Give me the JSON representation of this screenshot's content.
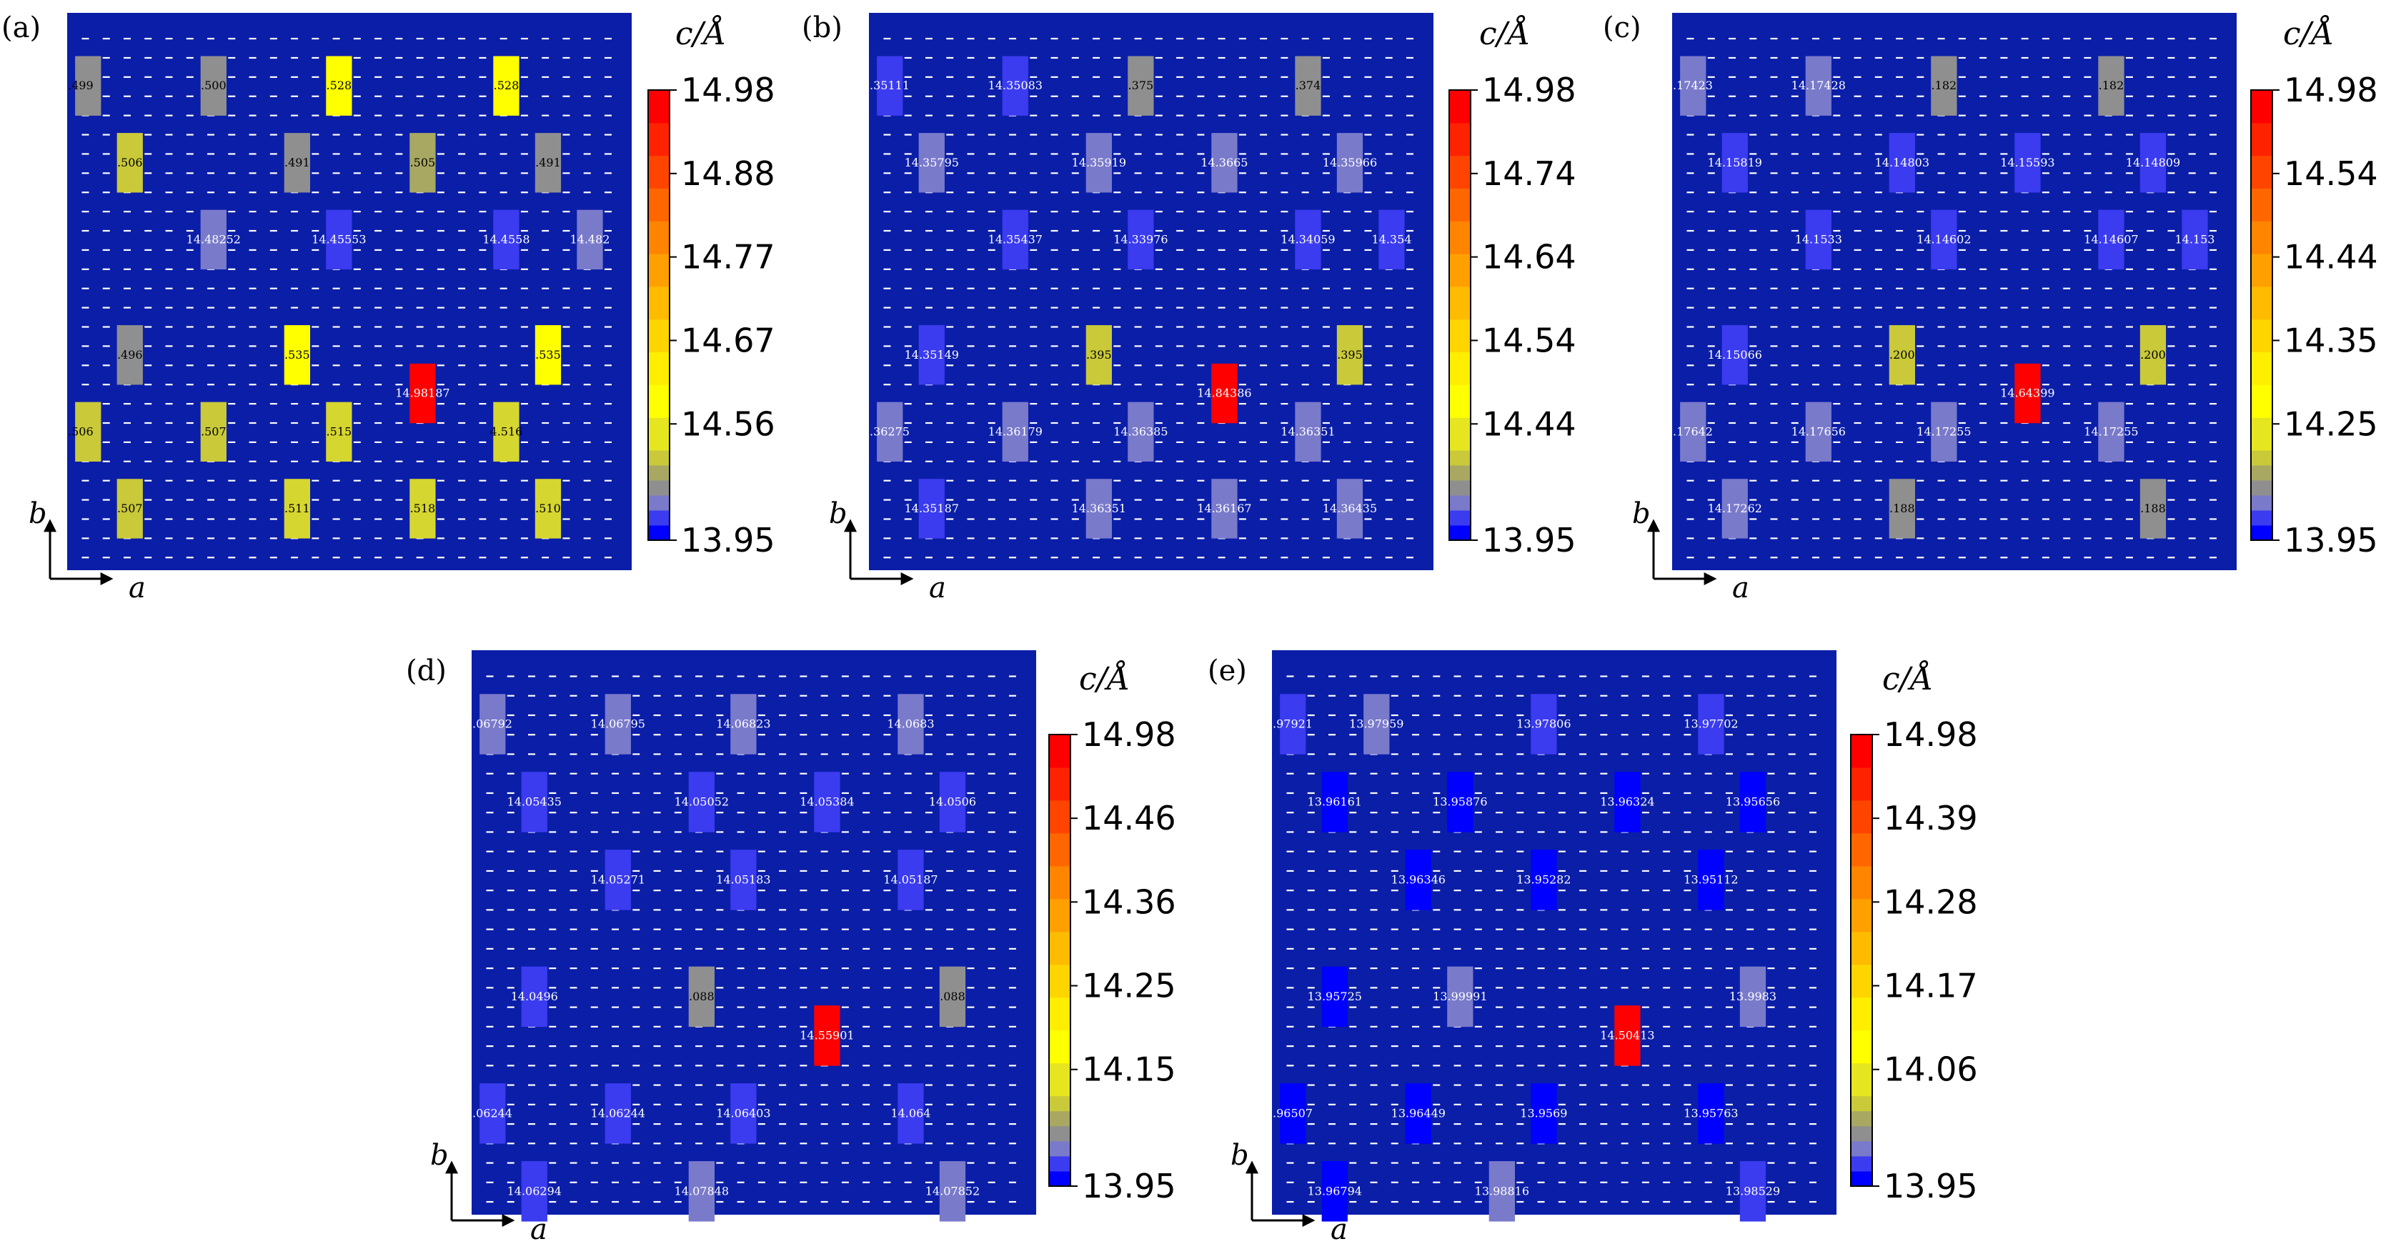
{
  "figure": {
    "colors": {
      "background": "#0b1ea8",
      "dash": "#ffffff"
    },
    "colorbar": {
      "title_var": "c",
      "title_unit": "/Å",
      "steps": [
        "#0000ff",
        "#3b3bf0",
        "#7a7acb",
        "#8f8f8f",
        "#a8a862",
        "#c9c93a",
        "#e6e620",
        "#ffff00",
        "#ffee00",
        "#ffd500",
        "#ffbb00",
        "#ffa000",
        "#ff8400",
        "#ff6600",
        "#ff4400",
        "#ff2200",
        "#ff0000"
      ]
    }
  },
  "chart_data": [
    {
      "type": "heatmap",
      "panel_label": "(a)",
      "title": "c/Å",
      "xlabel": "a",
      "ylabel": "b",
      "grid": {
        "cols": 13,
        "rows": 13
      },
      "colorbar_ticks": [
        "14.98",
        "14.88",
        "14.77",
        "14.67",
        "14.56",
        "13.95"
      ],
      "range": [
        13.95,
        14.98
      ],
      "cells": [
        {
          "col": 0,
          "row": 1,
          "label": ".499",
          "value": 14.499,
          "color": "#8f8f8f"
        },
        {
          "col": 3,
          "row": 1,
          "label": ".500",
          "value": 14.5,
          "color": "#8f8f8f"
        },
        {
          "col": 6,
          "row": 1,
          "label": ".528",
          "value": 14.528,
          "color": "#ffff00"
        },
        {
          "col": 10,
          "row": 1,
          "label": ".528",
          "value": 14.528,
          "color": "#ffff00"
        },
        {
          "col": 1,
          "row": 3,
          "label": ".506",
          "value": 14.506,
          "color": "#c9c93a"
        },
        {
          "col": 5,
          "row": 3,
          "label": ".491",
          "value": 14.491,
          "color": "#8f8f8f"
        },
        {
          "col": 8,
          "row": 3,
          "label": ".505",
          "value": 14.505,
          "color": "#a8a862"
        },
        {
          "col": 11,
          "row": 3,
          "label": ".491",
          "value": 14.491,
          "color": "#8f8f8f"
        },
        {
          "col": 3,
          "row": 5,
          "label": "14.48252",
          "value": 14.48252,
          "color": "#7a7acb"
        },
        {
          "col": 6,
          "row": 5,
          "label": "14.45553",
          "value": 14.45553,
          "color": "#3b3bf0"
        },
        {
          "col": 10,
          "row": 5,
          "label": "14.4558",
          "value": 14.4558,
          "color": "#3b3bf0"
        },
        {
          "col": 12,
          "row": 5,
          "label": "14.482",
          "value": 14.482,
          "color": "#7a7acb"
        },
        {
          "col": 1,
          "row": 8,
          "label": ".496",
          "value": 14.496,
          "color": "#8f8f8f"
        },
        {
          "col": 5,
          "row": 8,
          "label": ".535",
          "value": 14.535,
          "color": "#ffff00"
        },
        {
          "col": 11,
          "row": 8,
          "label": ".535",
          "value": 14.535,
          "color": "#ffff00"
        },
        {
          "col": 8,
          "row": 9,
          "label": "14.98187",
          "value": 14.98187,
          "color": "#ff0000"
        },
        {
          "col": 0,
          "row": 10,
          "label": ".506",
          "value": 14.506,
          "color": "#c9c93a"
        },
        {
          "col": 3,
          "row": 10,
          "label": ".507",
          "value": 14.507,
          "color": "#c9c93a"
        },
        {
          "col": 6,
          "row": 10,
          "label": ".515",
          "value": 14.515,
          "color": "#d6d630"
        },
        {
          "col": 10,
          "row": 10,
          "label": "4.516",
          "value": 14.516,
          "color": "#d6d630"
        },
        {
          "col": 1,
          "row": 12,
          "label": ".507",
          "value": 14.507,
          "color": "#c9c93a"
        },
        {
          "col": 5,
          "row": 12,
          "label": ".511",
          "value": 14.511,
          "color": "#d6d630"
        },
        {
          "col": 8,
          "row": 12,
          "label": ".518",
          "value": 14.518,
          "color": "#d6d630"
        },
        {
          "col": 11,
          "row": 12,
          "label": ".510",
          "value": 14.51,
          "color": "#d6d630"
        }
      ]
    },
    {
      "type": "heatmap",
      "panel_label": "(b)",
      "title": "c/Å",
      "xlabel": "a",
      "ylabel": "b",
      "grid": {
        "cols": 13,
        "rows": 13
      },
      "colorbar_ticks": [
        "14.98",
        "14.74",
        "14.64",
        "14.54",
        "14.44",
        "13.95"
      ],
      "range": [
        13.95,
        14.98
      ],
      "cells": [
        {
          "col": 0,
          "row": 1,
          "label": ".35111",
          "value": 14.35111,
          "color": "#3b3bf0"
        },
        {
          "col": 3,
          "row": 1,
          "label": "14.35083",
          "value": 14.35083,
          "color": "#3b3bf0"
        },
        {
          "col": 6,
          "row": 1,
          "label": ".375",
          "value": 14.375,
          "color": "#8f8f8f"
        },
        {
          "col": 10,
          "row": 1,
          "label": ".374",
          "value": 14.374,
          "color": "#8f8f8f"
        },
        {
          "col": 1,
          "row": 3,
          "label": "14.35795",
          "value": 14.35795,
          "color": "#7a7acb"
        },
        {
          "col": 5,
          "row": 3,
          "label": "14.35919",
          "value": 14.35919,
          "color": "#7a7acb"
        },
        {
          "col": 8,
          "row": 3,
          "label": "14.3665",
          "value": 14.3665,
          "color": "#7a7acb"
        },
        {
          "col": 11,
          "row": 3,
          "label": "14.35966",
          "value": 14.35966,
          "color": "#7a7acb"
        },
        {
          "col": 3,
          "row": 5,
          "label": "14.35437",
          "value": 14.35437,
          "color": "#3b3bf0"
        },
        {
          "col": 6,
          "row": 5,
          "label": "14.33976",
          "value": 14.33976,
          "color": "#3b3bf0"
        },
        {
          "col": 10,
          "row": 5,
          "label": "14.34059",
          "value": 14.34059,
          "color": "#3b3bf0"
        },
        {
          "col": 12,
          "row": 5,
          "label": "14.354",
          "value": 14.354,
          "color": "#3b3bf0"
        },
        {
          "col": 1,
          "row": 8,
          "label": "14.35149",
          "value": 14.35149,
          "color": "#3b3bf0"
        },
        {
          "col": 5,
          "row": 8,
          "label": ".395",
          "value": 14.395,
          "color": "#c9c93a"
        },
        {
          "col": 11,
          "row": 8,
          "label": ".395",
          "value": 14.395,
          "color": "#c9c93a"
        },
        {
          "col": 8,
          "row": 9,
          "label": "14.84386",
          "value": 14.84386,
          "color": "#ff0000"
        },
        {
          "col": 0,
          "row": 10,
          "label": ".36275",
          "value": 14.36275,
          "color": "#7a7acb"
        },
        {
          "col": 3,
          "row": 10,
          "label": "14.36179",
          "value": 14.36179,
          "color": "#7a7acb"
        },
        {
          "col": 6,
          "row": 10,
          "label": "14.36385",
          "value": 14.36385,
          "color": "#7a7acb"
        },
        {
          "col": 10,
          "row": 10,
          "label": "14.36351",
          "value": 14.36351,
          "color": "#7a7acb"
        },
        {
          "col": 1,
          "row": 12,
          "label": "14.35187",
          "value": 14.35187,
          "color": "#3b3bf0"
        },
        {
          "col": 5,
          "row": 12,
          "label": "14.36351",
          "value": 14.36351,
          "color": "#7a7acb"
        },
        {
          "col": 8,
          "row": 12,
          "label": "14.36167",
          "value": 14.36167,
          "color": "#7a7acb"
        },
        {
          "col": 11,
          "row": 12,
          "label": "14.36435",
          "value": 14.36435,
          "color": "#7a7acb"
        }
      ]
    },
    {
      "type": "heatmap",
      "panel_label": "(c)",
      "title": "c/Å",
      "xlabel": "a",
      "ylabel": "b",
      "grid": {
        "cols": 13,
        "rows": 13
      },
      "colorbar_ticks": [
        "14.98",
        "14.54",
        "14.44",
        "14.35",
        "14.25",
        "13.95"
      ],
      "range": [
        13.95,
        14.98
      ],
      "cells": [
        {
          "col": 0,
          "row": 1,
          "label": ".17423",
          "value": 14.17423,
          "color": "#7a7acb"
        },
        {
          "col": 3,
          "row": 1,
          "label": "14.17428",
          "value": 14.17428,
          "color": "#7a7acb"
        },
        {
          "col": 6,
          "row": 1,
          "label": ".182",
          "value": 14.182,
          "color": "#8f8f8f"
        },
        {
          "col": 10,
          "row": 1,
          "label": ".182",
          "value": 14.182,
          "color": "#8f8f8f"
        },
        {
          "col": 1,
          "row": 3,
          "label": "14.15819",
          "value": 14.15819,
          "color": "#3b3bf0"
        },
        {
          "col": 5,
          "row": 3,
          "label": "14.14803",
          "value": 14.14803,
          "color": "#3b3bf0"
        },
        {
          "col": 8,
          "row": 3,
          "label": "14.15593",
          "value": 14.15593,
          "color": "#3b3bf0"
        },
        {
          "col": 11,
          "row": 3,
          "label": "14.14809",
          "value": 14.14809,
          "color": "#3b3bf0"
        },
        {
          "col": 3,
          "row": 5,
          "label": "14.1533",
          "value": 14.1533,
          "color": "#3b3bf0"
        },
        {
          "col": 6,
          "row": 5,
          "label": "14.14602",
          "value": 14.14602,
          "color": "#3b3bf0"
        },
        {
          "col": 10,
          "row": 5,
          "label": "14.14607",
          "value": 14.14607,
          "color": "#3b3bf0"
        },
        {
          "col": 12,
          "row": 5,
          "label": "14.153",
          "value": 14.153,
          "color": "#3b3bf0"
        },
        {
          "col": 1,
          "row": 8,
          "label": "14.15066",
          "value": 14.15066,
          "color": "#3b3bf0"
        },
        {
          "col": 5,
          "row": 8,
          "label": ".200",
          "value": 14.2,
          "color": "#c9c93a"
        },
        {
          "col": 11,
          "row": 8,
          "label": ".200",
          "value": 14.2,
          "color": "#c9c93a"
        },
        {
          "col": 8,
          "row": 9,
          "label": "14.64399",
          "value": 14.64399,
          "color": "#ff0000"
        },
        {
          "col": 0,
          "row": 10,
          "label": ".17642",
          "value": 14.17642,
          "color": "#7a7acb"
        },
        {
          "col": 3,
          "row": 10,
          "label": "14.17656",
          "value": 14.17656,
          "color": "#7a7acb"
        },
        {
          "col": 6,
          "row": 10,
          "label": "14.17255",
          "value": 14.17255,
          "color": "#7a7acb"
        },
        {
          "col": 10,
          "row": 10,
          "label": "14.17255",
          "value": 14.17255,
          "color": "#7a7acb"
        },
        {
          "col": 1,
          "row": 12,
          "label": "14.17262",
          "value": 14.17262,
          "color": "#7a7acb"
        },
        {
          "col": 5,
          "row": 12,
          "label": ".188",
          "value": 14.188,
          "color": "#8f8f8f"
        },
        {
          "col": 11,
          "row": 12,
          "label": ".188",
          "value": 14.188,
          "color": "#8f8f8f"
        }
      ]
    },
    {
      "type": "heatmap",
      "panel_label": "(d)",
      "title": "c/Å",
      "xlabel": "a",
      "ylabel": "b",
      "grid": {
        "cols": 13,
        "rows": 13
      },
      "colorbar_ticks": [
        "14.98",
        "14.46",
        "14.36",
        "14.25",
        "14.15",
        "13.95"
      ],
      "range": [
        13.95,
        14.98
      ],
      "cells": [
        {
          "col": 0,
          "row": 1,
          "label": ".06792",
          "value": 14.06792,
          "color": "#7a7acb"
        },
        {
          "col": 3,
          "row": 1,
          "label": "14.06795",
          "value": 14.06795,
          "color": "#7a7acb"
        },
        {
          "col": 6,
          "row": 1,
          "label": "14.06823",
          "value": 14.06823,
          "color": "#7a7acb"
        },
        {
          "col": 10,
          "row": 1,
          "label": "14.0683",
          "value": 14.0683,
          "color": "#7a7acb"
        },
        {
          "col": 1,
          "row": 3,
          "label": "14.05435",
          "value": 14.05435,
          "color": "#3b3bf0"
        },
        {
          "col": 5,
          "row": 3,
          "label": "14.05052",
          "value": 14.05052,
          "color": "#3b3bf0"
        },
        {
          "col": 8,
          "row": 3,
          "label": "14.05384",
          "value": 14.05384,
          "color": "#3b3bf0"
        },
        {
          "col": 11,
          "row": 3,
          "label": "14.0506",
          "value": 14.0506,
          "color": "#3b3bf0"
        },
        {
          "col": 3,
          "row": 5,
          "label": "14.05271",
          "value": 14.05271,
          "color": "#3b3bf0"
        },
        {
          "col": 6,
          "row": 5,
          "label": "14.05183",
          "value": 14.05183,
          "color": "#3b3bf0"
        },
        {
          "col": 10,
          "row": 5,
          "label": "14.05187",
          "value": 14.05187,
          "color": "#3b3bf0"
        },
        {
          "col": 1,
          "row": 8,
          "label": "14.0496",
          "value": 14.0496,
          "color": "#3b3bf0"
        },
        {
          "col": 5,
          "row": 8,
          "label": ".088",
          "value": 14.088,
          "color": "#8f8f8f"
        },
        {
          "col": 11,
          "row": 8,
          "label": ".088",
          "value": 14.088,
          "color": "#8f8f8f"
        },
        {
          "col": 8,
          "row": 9,
          "label": "14.55901",
          "value": 14.55901,
          "color": "#ff0000"
        },
        {
          "col": 0,
          "row": 11,
          "label": ".06244",
          "value": 14.06244,
          "color": "#3b3bf0"
        },
        {
          "col": 3,
          "row": 11,
          "label": "14.06244",
          "value": 14.06244,
          "color": "#3b3bf0"
        },
        {
          "col": 6,
          "row": 11,
          "label": "14.06403",
          "value": 14.06403,
          "color": "#3b3bf0"
        },
        {
          "col": 10,
          "row": 11,
          "label": "14.064",
          "value": 14.064,
          "color": "#3b3bf0"
        },
        {
          "col": 1,
          "row": 13,
          "label": "14.06294",
          "value": 14.06294,
          "color": "#3b3bf0"
        },
        {
          "col": 5,
          "row": 13,
          "label": "14.07848",
          "value": 14.07848,
          "color": "#7a7acb"
        },
        {
          "col": 11,
          "row": 13,
          "label": "14.07852",
          "value": 14.07852,
          "color": "#7a7acb"
        }
      ]
    },
    {
      "type": "heatmap",
      "panel_label": "(e)",
      "title": "c/Å",
      "xlabel": "a",
      "ylabel": "b",
      "grid": {
        "cols": 13,
        "rows": 13
      },
      "colorbar_ticks": [
        "14.98",
        "14.39",
        "14.28",
        "14.17",
        "14.06",
        "13.95"
      ],
      "range": [
        13.95,
        14.98
      ],
      "cells": [
        {
          "col": 0,
          "row": 1,
          "label": ".97921",
          "value": 13.97921,
          "color": "#3b3bf0"
        },
        {
          "col": 2,
          "row": 1,
          "label": "13.97959",
          "value": 13.97959,
          "color": "#7a7acb"
        },
        {
          "col": 6,
          "row": 1,
          "label": "13.97806",
          "value": 13.97806,
          "color": "#3b3bf0"
        },
        {
          "col": 10,
          "row": 1,
          "label": "13.97702",
          "value": 13.97702,
          "color": "#3b3bf0"
        },
        {
          "col": 1,
          "row": 3,
          "label": "13.96161",
          "value": 13.96161,
          "color": "#0000ff"
        },
        {
          "col": 4,
          "row": 3,
          "label": "13.95876",
          "value": 13.95876,
          "color": "#0000ff"
        },
        {
          "col": 8,
          "row": 3,
          "label": "13.96324",
          "value": 13.96324,
          "color": "#0000ff"
        },
        {
          "col": 11,
          "row": 3,
          "label": "13.95656",
          "value": 13.95656,
          "color": "#0000ff"
        },
        {
          "col": 3,
          "row": 5,
          "label": "13.96346",
          "value": 13.96346,
          "color": "#0000ff"
        },
        {
          "col": 6,
          "row": 5,
          "label": "13.95282",
          "value": 13.95282,
          "color": "#0000ff"
        },
        {
          "col": 10,
          "row": 5,
          "label": "13.95112",
          "value": 13.95112,
          "color": "#0000ff"
        },
        {
          "col": 1,
          "row": 8,
          "label": "13.95725",
          "value": 13.95725,
          "color": "#0000ff"
        },
        {
          "col": 4,
          "row": 8,
          "label": "13.99991",
          "value": 13.99991,
          "color": "#7a7acb"
        },
        {
          "col": 11,
          "row": 8,
          "label": "13.9983",
          "value": 13.9983,
          "color": "#7a7acb"
        },
        {
          "col": 8,
          "row": 9,
          "label": "14.50413",
          "value": 14.50413,
          "color": "#ff0000"
        },
        {
          "col": 0,
          "row": 11,
          "label": ".96507",
          "value": 13.96507,
          "color": "#0000ff"
        },
        {
          "col": 3,
          "row": 11,
          "label": "13.96449",
          "value": 13.96449,
          "color": "#0000ff"
        },
        {
          "col": 6,
          "row": 11,
          "label": "13.9569",
          "value": 13.9569,
          "color": "#0000ff"
        },
        {
          "col": 10,
          "row": 11,
          "label": "13.95763",
          "value": 13.95763,
          "color": "#0000ff"
        },
        {
          "col": 1,
          "row": 13,
          "label": "13.96794",
          "value": 13.96794,
          "color": "#0000ff"
        },
        {
          "col": 5,
          "row": 13,
          "label": "13.98816",
          "value": 13.98816,
          "color": "#7a7acb"
        },
        {
          "col": 11,
          "row": 13,
          "label": "13.98529",
          "value": 13.98529,
          "color": "#3b3bf0"
        }
      ]
    }
  ]
}
